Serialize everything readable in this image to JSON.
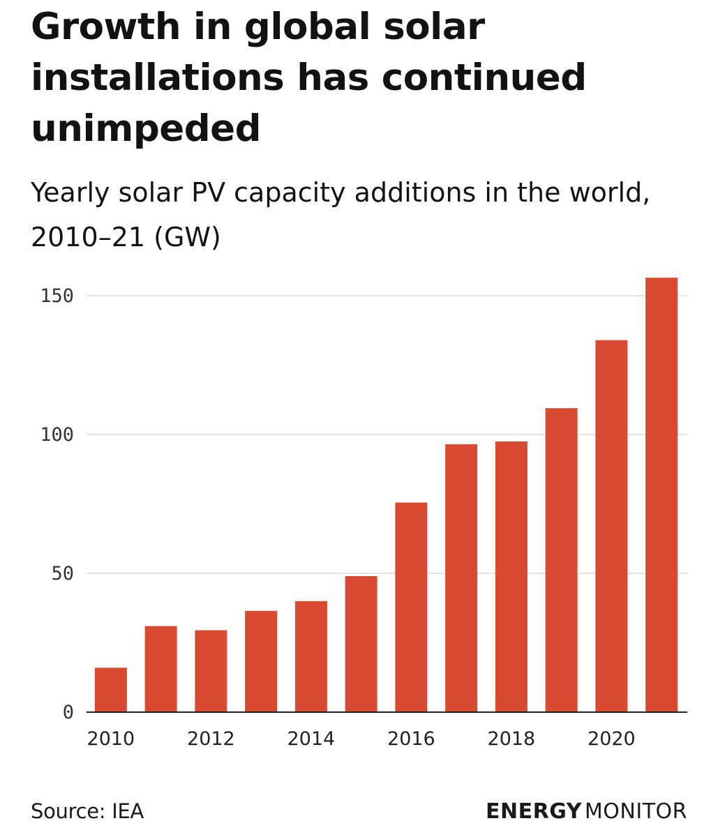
{
  "chart_data": {
    "type": "bar",
    "title": "Growth in global solar installations has continued unimpeded",
    "subtitle": "Yearly solar PV capacity additions in the world, 2010–21 (GW)",
    "categories": [
      "2010",
      "2011",
      "2012",
      "2013",
      "2014",
      "2015",
      "2016",
      "2017",
      "2018",
      "2019",
      "2020",
      "2021"
    ],
    "values": [
      16,
      31,
      29.5,
      36.5,
      40,
      49,
      75.5,
      96.5,
      97.5,
      109.5,
      134,
      156.5
    ],
    "y_ticks": [
      "0",
      "50",
      "100",
      "150"
    ],
    "x_ticks": [
      "2010",
      "2012",
      "2014",
      "2016",
      "2018",
      "2020"
    ],
    "xlabel": "",
    "ylabel": "",
    "ylim": [
      0,
      160
    ],
    "grid": true,
    "bar_color": "#d84b32"
  },
  "footer": {
    "source": "Source: IEA",
    "brand_bold": "ENERGY",
    "brand_light": "MONITOR"
  }
}
